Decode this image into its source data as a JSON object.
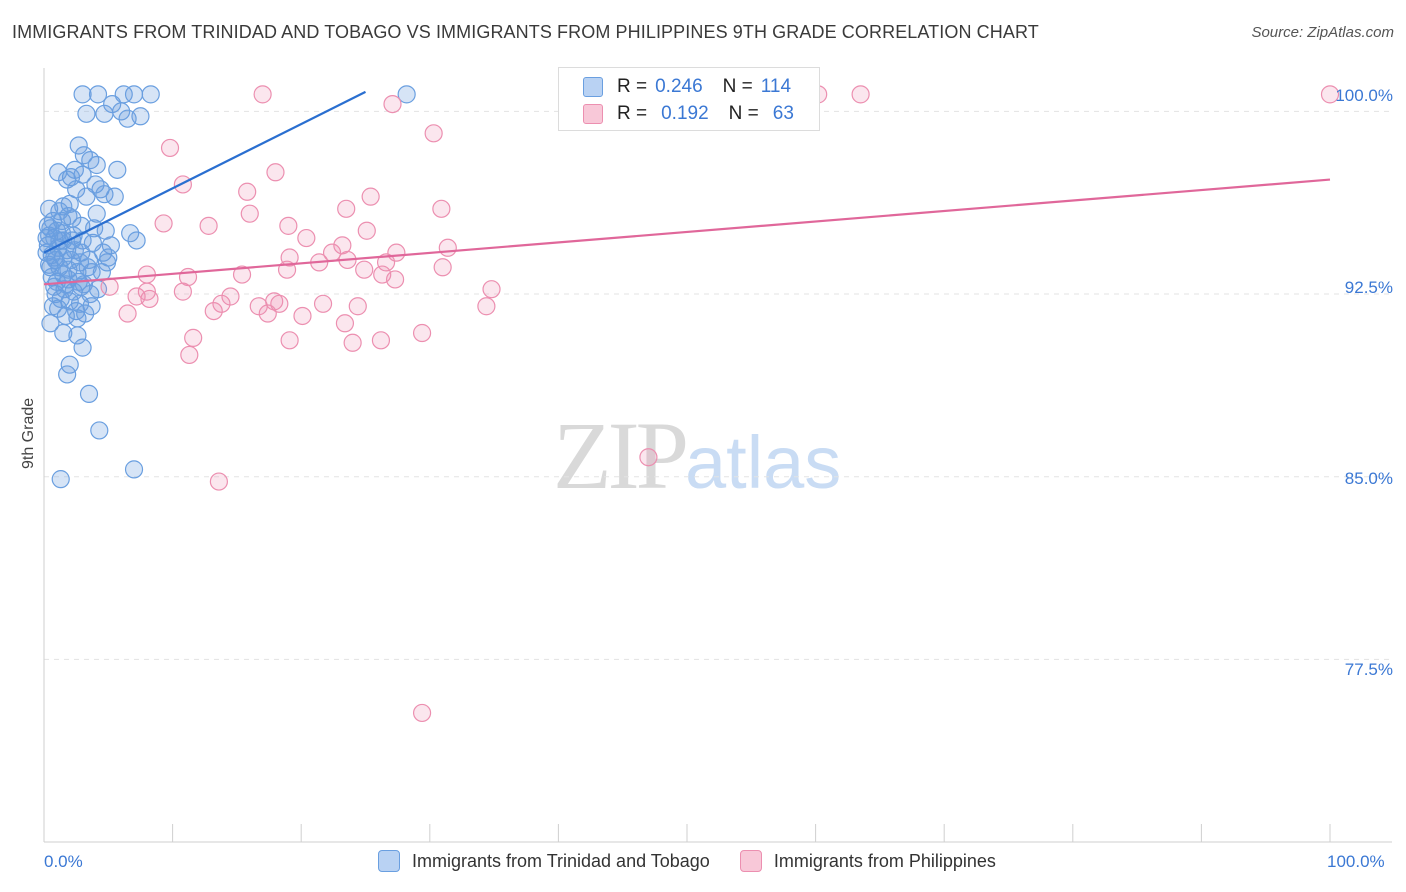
{
  "title": "IMMIGRANTS FROM TRINIDAD AND TOBAGO VS IMMIGRANTS FROM PHILIPPINES 9TH GRADE CORRELATION CHART",
  "source": "Source: ZipAtlas.com",
  "watermark": {
    "zip": "ZIP",
    "atlas": "atlas"
  },
  "legend": {
    "rows": [
      {
        "r_label": "R =",
        "r_value": "0.246",
        "n_label": "N =",
        "n_value": "114",
        "color": "#6a9fe0"
      },
      {
        "r_label": "R =",
        "r_value": "0.192",
        "n_label": "N =",
        "n_value": "63",
        "color": "#ec8fb0"
      }
    ]
  },
  "chart_data": {
    "type": "scatter",
    "title": "IMMIGRANTS FROM TRINIDAD AND TOBAGO VS IMMIGRANTS FROM PHILIPPINES 9TH GRADE CORRELATION CHART",
    "xlabel": "",
    "ylabel": "9th Grade",
    "xlim": [
      0,
      100
    ],
    "ylim": [
      70.0,
      101.7
    ],
    "x_tick_labels": [
      "0.0%",
      "100.0%"
    ],
    "y_ticks": [
      100.0,
      92.5,
      85.0,
      77.5
    ],
    "y_tick_labels": [
      "100.0%",
      "92.5%",
      "85.0%",
      "77.5%"
    ],
    "grid": true,
    "series": [
      {
        "name": "Immigrants from Trinidad and Tobago",
        "color": "#6a9fe0",
        "line_color": "#2a6fd0",
        "trend": {
          "x": [
            0,
            25
          ],
          "y": [
            94.2,
            100.8
          ]
        },
        "points": [
          [
            3.0,
            100.7
          ],
          [
            4.2,
            100.7
          ],
          [
            6.2,
            100.7
          ],
          [
            7.0,
            100.7
          ],
          [
            8.3,
            100.7
          ],
          [
            28.2,
            100.7
          ],
          [
            5.3,
            100.3
          ],
          [
            6.0,
            100.0
          ],
          [
            3.3,
            99.9
          ],
          [
            4.7,
            99.9
          ],
          [
            7.5,
            99.8
          ],
          [
            6.5,
            99.7
          ],
          [
            2.7,
            98.6
          ],
          [
            3.1,
            98.2
          ],
          [
            3.6,
            98.0
          ],
          [
            4.1,
            97.8
          ],
          [
            2.4,
            97.6
          ],
          [
            3.0,
            97.4
          ],
          [
            1.1,
            97.5
          ],
          [
            5.7,
            97.6
          ],
          [
            2.1,
            97.3
          ],
          [
            1.8,
            97.2
          ],
          [
            4.4,
            96.8
          ],
          [
            4.0,
            97.0
          ],
          [
            2.5,
            96.8
          ],
          [
            3.3,
            96.5
          ],
          [
            4.7,
            96.6
          ],
          [
            5.5,
            96.5
          ],
          [
            1.5,
            96.1
          ],
          [
            2.0,
            96.2
          ],
          [
            1.2,
            95.9
          ],
          [
            1.9,
            95.7
          ],
          [
            4.1,
            95.8
          ],
          [
            0.7,
            95.5
          ],
          [
            1.4,
            95.5
          ],
          [
            2.9,
            95.3
          ],
          [
            0.5,
            95.2
          ],
          [
            1.0,
            95.1
          ],
          [
            4.8,
            95.1
          ],
          [
            6.7,
            95.0
          ],
          [
            0.4,
            94.9
          ],
          [
            0.8,
            94.8
          ],
          [
            1.5,
            94.7
          ],
          [
            2.2,
            94.7
          ],
          [
            3.0,
            94.7
          ],
          [
            3.8,
            94.6
          ],
          [
            5.2,
            94.5
          ],
          [
            7.2,
            94.7
          ],
          [
            0.3,
            94.5
          ],
          [
            1.1,
            94.4
          ],
          [
            1.8,
            94.3
          ],
          [
            2.4,
            94.3
          ],
          [
            2.9,
            94.2
          ],
          [
            4.6,
            94.2
          ],
          [
            0.2,
            94.2
          ],
          [
            0.8,
            94.0
          ],
          [
            1.5,
            94.0
          ],
          [
            2.1,
            93.9
          ],
          [
            2.8,
            93.8
          ],
          [
            3.5,
            93.9
          ],
          [
            4.9,
            93.8
          ],
          [
            0.4,
            93.7
          ],
          [
            1.2,
            93.6
          ],
          [
            1.9,
            93.5
          ],
          [
            2.6,
            93.4
          ],
          [
            3.7,
            93.4
          ],
          [
            4.5,
            93.4
          ],
          [
            1.5,
            93.3
          ],
          [
            0.6,
            93.2
          ],
          [
            1.0,
            93.0
          ],
          [
            1.9,
            93.1
          ],
          [
            2.7,
            93.0
          ],
          [
            3.1,
            92.9
          ],
          [
            0.8,
            92.8
          ],
          [
            1.6,
            92.7
          ],
          [
            2.3,
            92.6
          ],
          [
            3.6,
            92.5
          ],
          [
            4.2,
            92.7
          ],
          [
            0.9,
            92.5
          ],
          [
            1.3,
            92.3
          ],
          [
            2.0,
            92.2
          ],
          [
            2.8,
            92.1
          ],
          [
            3.7,
            92.0
          ],
          [
            0.7,
            92.0
          ],
          [
            1.1,
            91.9
          ],
          [
            2.5,
            91.8
          ],
          [
            3.2,
            91.7
          ],
          [
            1.7,
            91.6
          ],
          [
            2.6,
            91.5
          ],
          [
            0.5,
            91.3
          ],
          [
            1.5,
            90.9
          ],
          [
            2.6,
            90.8
          ],
          [
            3.0,
            90.3
          ],
          [
            2.0,
            89.6
          ],
          [
            1.8,
            89.2
          ],
          [
            3.5,
            88.4
          ],
          [
            4.3,
            86.9
          ],
          [
            7.0,
            85.3
          ],
          [
            1.3,
            84.9
          ],
          [
            0.2,
            94.8
          ],
          [
            0.3,
            95.3
          ],
          [
            0.6,
            94.1
          ],
          [
            0.9,
            93.9
          ],
          [
            1.4,
            95.0
          ],
          [
            2.2,
            95.6
          ],
          [
            3.4,
            93.6
          ],
          [
            2.9,
            92.8
          ],
          [
            1.2,
            94.7
          ],
          [
            0.5,
            93.6
          ],
          [
            1.7,
            92.9
          ],
          [
            2.3,
            94.9
          ],
          [
            3.9,
            95.2
          ],
          [
            0.4,
            96.0
          ],
          [
            5.0,
            94.0
          ]
        ]
      },
      {
        "name": "Immigrants from Philippines",
        "color": "#ec8fb0",
        "line_color": "#e0679a",
        "trend": {
          "x": [
            0,
            100
          ],
          "y": [
            92.9,
            97.2
          ]
        },
        "points": [
          [
            17.0,
            100.7
          ],
          [
            60.2,
            100.7
          ],
          [
            63.5,
            100.7
          ],
          [
            100.0,
            100.7
          ],
          [
            27.1,
            100.3
          ],
          [
            30.3,
            99.1
          ],
          [
            9.8,
            98.5
          ],
          [
            18.0,
            97.5
          ],
          [
            10.8,
            97.0
          ],
          [
            15.8,
            96.7
          ],
          [
            25.4,
            96.5
          ],
          [
            16.0,
            95.8
          ],
          [
            23.5,
            96.0
          ],
          [
            30.9,
            96.0
          ],
          [
            19.0,
            95.3
          ],
          [
            9.3,
            95.4
          ],
          [
            25.1,
            95.1
          ],
          [
            12.8,
            95.3
          ],
          [
            20.4,
            94.8
          ],
          [
            23.2,
            94.5
          ],
          [
            31.4,
            94.4
          ],
          [
            27.4,
            94.2
          ],
          [
            22.4,
            94.2
          ],
          [
            19.1,
            94.0
          ],
          [
            21.4,
            93.8
          ],
          [
            26.6,
            93.8
          ],
          [
            31.0,
            93.6
          ],
          [
            18.9,
            93.5
          ],
          [
            24.9,
            93.5
          ],
          [
            26.3,
            93.3
          ],
          [
            8.0,
            93.3
          ],
          [
            15.4,
            93.3
          ],
          [
            11.2,
            93.2
          ],
          [
            27.3,
            93.1
          ],
          [
            34.8,
            92.7
          ],
          [
            5.1,
            92.8
          ],
          [
            8.0,
            92.6
          ],
          [
            10.8,
            92.6
          ],
          [
            7.2,
            92.4
          ],
          [
            14.5,
            92.4
          ],
          [
            8.2,
            92.3
          ],
          [
            13.8,
            92.1
          ],
          [
            17.9,
            92.2
          ],
          [
            18.3,
            92.1
          ],
          [
            16.7,
            92.0
          ],
          [
            21.7,
            92.1
          ],
          [
            24.4,
            92.0
          ],
          [
            34.4,
            92.0
          ],
          [
            6.5,
            91.7
          ],
          [
            13.2,
            91.8
          ],
          [
            17.4,
            91.7
          ],
          [
            20.1,
            91.6
          ],
          [
            23.4,
            91.3
          ],
          [
            29.4,
            90.9
          ],
          [
            11.6,
            90.7
          ],
          [
            19.1,
            90.6
          ],
          [
            24.0,
            90.5
          ],
          [
            11.3,
            90.0
          ],
          [
            26.2,
            90.6
          ],
          [
            47.0,
            85.8
          ],
          [
            13.6,
            84.8
          ],
          [
            29.4,
            75.3
          ],
          [
            23.6,
            93.9
          ]
        ]
      }
    ]
  },
  "bottom_legend": [
    {
      "label": "Immigrants from Trinidad and Tobago",
      "color": "#6a9fe0"
    },
    {
      "label": "Immigrants from Philippines",
      "color": "#ec8fb0"
    }
  ]
}
